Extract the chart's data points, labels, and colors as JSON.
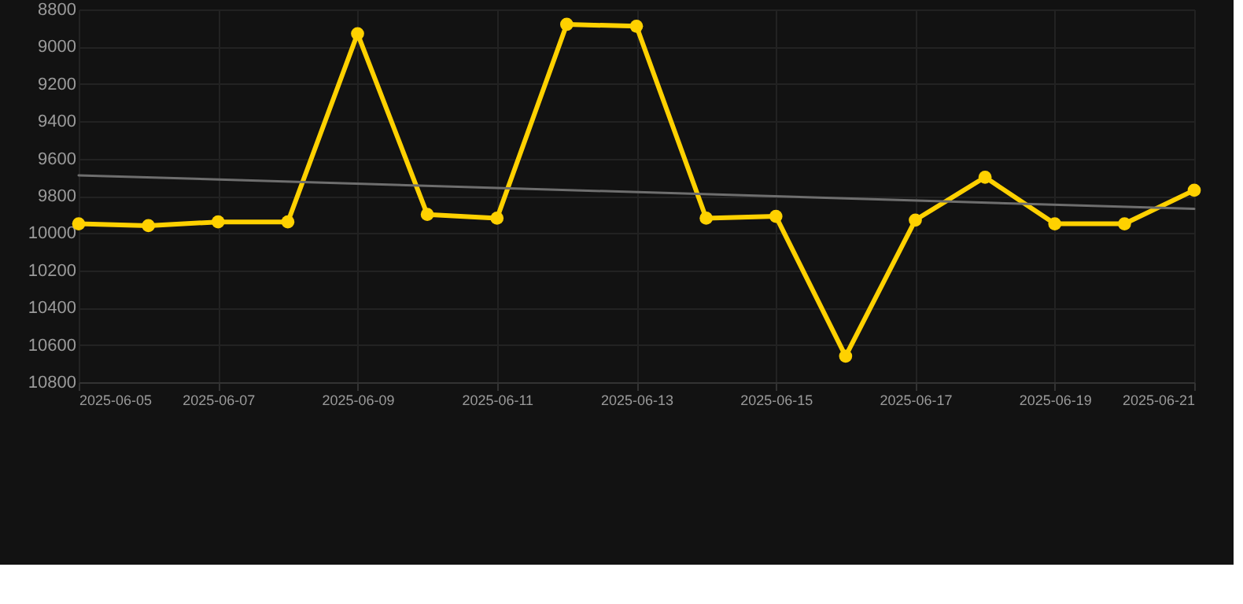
{
  "chart_data": {
    "type": "line",
    "x": [
      "2025-06-05",
      "2025-06-06",
      "2025-06-07",
      "2025-06-08",
      "2025-06-09",
      "2025-06-10",
      "2025-06-11",
      "2025-06-12",
      "2025-06-13",
      "2025-06-14",
      "2025-06-15",
      "2025-06-16",
      "2025-06-17",
      "2025-06-18",
      "2025-06-19",
      "2025-06-20",
      "2025-06-21"
    ],
    "series": [
      {
        "color": "#ffd100",
        "values": [
          9950,
          9960,
          9940,
          9940,
          8930,
          9900,
          9920,
          8880,
          8890,
          9920,
          9910,
          10660,
          9930,
          9700,
          9950,
          9950,
          9770
        ]
      },
      {
        "type": "line",
        "color": "#6e6e6e",
        "marker": "none",
        "x": [
          "2025-06-05",
          "2025-06-21"
        ],
        "values": [
          9690,
          9870
        ]
      }
    ],
    "xlim": [
      "2025-06-05",
      "2025-06-21"
    ],
    "xticks": [
      "2025-06-05",
      "2025-06-07",
      "2025-06-09",
      "2025-06-11",
      "2025-06-13",
      "2025-06-15",
      "2025-06-17",
      "2025-06-19",
      "2025-06-21"
    ],
    "ylim": [
      10800,
      8800
    ],
    "yticks": [
      8800,
      9000,
      9200,
      9400,
      9600,
      9800,
      10000,
      10200,
      10400,
      10600,
      10800
    ],
    "grid": true,
    "marker": "circle",
    "line_style": "solid"
  }
}
